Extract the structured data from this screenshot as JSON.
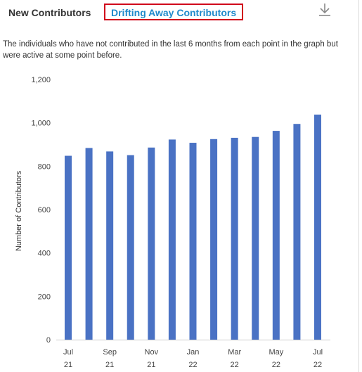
{
  "header": {
    "tab_new_label": "New Contributors",
    "tab_drifting_label": "Drifting Away Contributors",
    "download_icon": "download-icon"
  },
  "description": "The individuals who have not contributed in the last 6 months from each point in the graph but were active at some point before.",
  "colors": {
    "bar": "#4a72c4",
    "active_tab_border": "#d0021b",
    "active_tab_text": "#1f8acb"
  },
  "chart_data": {
    "type": "bar",
    "categories": [
      "Jul 21",
      "Aug 21",
      "Sep 21",
      "Oct 21",
      "Nov 21",
      "Dec 21",
      "Jan 22",
      "Feb 22",
      "Mar 22",
      "Apr 22",
      "May 22",
      "Jun 22",
      "Jul 22"
    ],
    "values": [
      848,
      884,
      868,
      851,
      886,
      923,
      908,
      925,
      931,
      935,
      963,
      995,
      1038
    ],
    "ylabel": "Number of Contributors",
    "ylim": [
      0,
      1200
    ],
    "yticks": [
      {
        "value": 0,
        "label": "0"
      },
      {
        "value": 200,
        "label": "200"
      },
      {
        "value": 400,
        "label": "400"
      },
      {
        "value": 600,
        "label": "600"
      },
      {
        "value": 800,
        "label": "800"
      },
      {
        "value": 1000,
        "label": "1,000"
      },
      {
        "value": 1200,
        "label": "1,200"
      }
    ],
    "xticks": [
      {
        "index": 0,
        "month": "Jul",
        "year": "21"
      },
      {
        "index": 2,
        "month": "Sep",
        "year": "21"
      },
      {
        "index": 4,
        "month": "Nov",
        "year": "21"
      },
      {
        "index": 6,
        "month": "Jan",
        "year": "22"
      },
      {
        "index": 8,
        "month": "Mar",
        "year": "22"
      },
      {
        "index": 10,
        "month": "May",
        "year": "22"
      },
      {
        "index": 12,
        "month": "Jul",
        "year": "22"
      }
    ],
    "grid": false,
    "legend": "none"
  }
}
